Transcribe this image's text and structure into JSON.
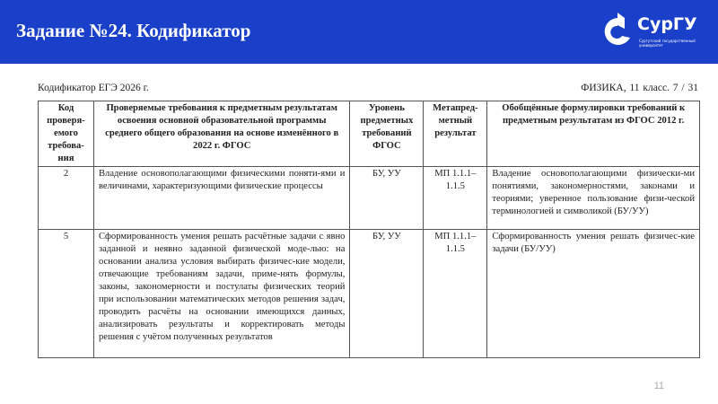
{
  "slide": {
    "title": "Задание №24. Кодификатор",
    "page_number": "11",
    "banner_color": "#1a3fc8"
  },
  "logo": {
    "name": "СурГУ",
    "subtitle": "Сургутский государственный университет"
  },
  "document": {
    "header_left": "Кодификатор ЕГЭ 2026 г.",
    "header_right": "ФИЗИКА, 11 класс.   7 / 31",
    "columns": [
      "Код проверя-емого требова-ния",
      "Проверяемые требования к предметным результатам освоения основной образовательной программы среднего общего образования на основе изменённого в 2022 г. ФГОС",
      "Уровень предметных требований ФГОС",
      "Метапред-метный результат",
      "Обобщённые формулировки требований к предметным результатам из ФГОС 2012 г."
    ],
    "rows": [
      [
        "2",
        "Владение основополагающими физическими поняти-ями и величинами, характеризующими физические процессы",
        "БУ, УУ",
        "МП 1.1.1–1.1.5",
        "Владение основополагающими физически-ми понятиями, закономерностями, законами и теориями; уверенное пользование физи-ческой терминологией и символикой (БУ/УУ)"
      ],
      [
        "5",
        "Сформированность умения решать расчётные задачи с явно заданной и неявно заданной физической моде-лью: на основании анализа условия выбирать физичес-кие модели, отвечающие требованиям задачи, приме-нять формулы, законы, закономерности и постулаты физических теорий при использовании математических методов решения задач, проводить расчёты на основании имеющихся данных, анализировать результаты и корректировать методы решения с учётом полученных результатов",
        "БУ, УУ",
        "МП 1.1.1–1.1.5",
        "Сформированность умения решать физичес-кие задачи (БУ/УУ)"
      ]
    ]
  }
}
